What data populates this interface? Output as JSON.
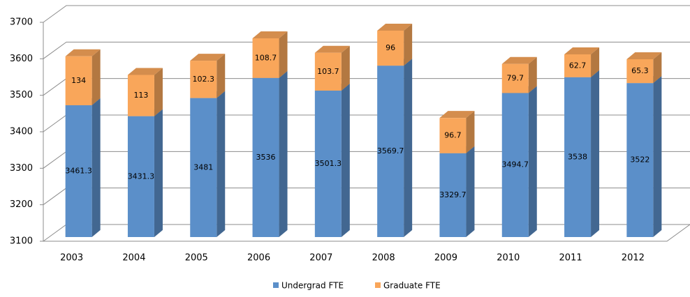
{
  "chart_data": {
    "type": "bar3d_stacked",
    "categories": [
      "2003",
      "2004",
      "2005",
      "2006",
      "2007",
      "2008",
      "2009",
      "2010",
      "2011",
      "2012"
    ],
    "series": [
      {
        "name": "Undergrad FTE",
        "color": "#5b8fc9",
        "values": [
          3461.3,
          3431.3,
          3481,
          3536,
          3501.3,
          3569.7,
          3329.7,
          3494.7,
          3538,
          3522
        ]
      },
      {
        "name": "Graduate FTE",
        "color": "#f9a65a",
        "values": [
          134,
          113,
          102.3,
          108.7,
          103.7,
          96,
          96.7,
          79.7,
          62.7,
          65.3
        ]
      }
    ],
    "ylim": [
      3100,
      3700
    ],
    "yticks": [
      3100,
      3200,
      3300,
      3400,
      3500,
      3600,
      3700
    ],
    "grid": true,
    "legend": "bottom"
  }
}
